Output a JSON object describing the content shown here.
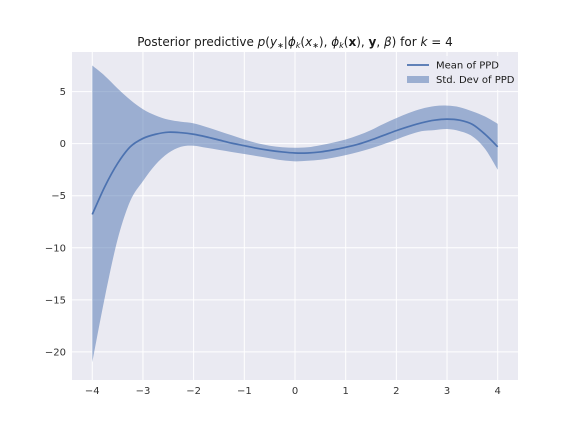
{
  "chart_data": {
    "type": "line",
    "title": "Posterior predictive p(y∗|ϕₖ(x∗), ϕₖ(x), y, β) for k = 4",
    "xlabel": "",
    "ylabel": "",
    "xlim": [
      -4.4,
      4.4
    ],
    "ylim": [
      -22.7,
      8.8
    ],
    "x_ticks": [
      -4,
      -3,
      -2,
      -1,
      0,
      1,
      2,
      3,
      4
    ],
    "x_tick_labels": [
      "−4",
      "−3",
      "−2",
      "−1",
      "0",
      "1",
      "2",
      "3",
      "4"
    ],
    "y_ticks": [
      5,
      0,
      -5,
      -10,
      -15,
      -20
    ],
    "y_tick_labels": [
      "5",
      "0",
      "−5",
      "−10",
      "−15",
      "−20"
    ],
    "grid": true,
    "legend_position": "upper-right",
    "colors": {
      "mean": "#4c72b0",
      "band": "#4c72b0",
      "background": "#eaeaf2",
      "grid": "#ffffff"
    },
    "legend": [
      {
        "label": "Mean of PPD",
        "kind": "line"
      },
      {
        "label": "Std. Dev of PPD",
        "kind": "band"
      }
    ],
    "series": [
      {
        "name": "Mean of PPD",
        "x": [
          -4,
          -3.75,
          -3.5,
          -3.25,
          -3,
          -2.75,
          -2.5,
          -2.25,
          -2,
          -1.75,
          -1.5,
          -1.25,
          -1,
          -0.75,
          -0.5,
          -0.25,
          0,
          0.25,
          0.5,
          0.75,
          1,
          1.25,
          1.5,
          1.75,
          2,
          2.25,
          2.5,
          2.75,
          3,
          3.25,
          3.5,
          3.75,
          4
        ],
        "y": [
          -6.8,
          -4.1,
          -1.9,
          -0.3,
          0.5,
          0.9,
          1.1,
          1.05,
          0.9,
          0.65,
          0.35,
          0.05,
          -0.2,
          -0.45,
          -0.65,
          -0.8,
          -0.9,
          -0.9,
          -0.8,
          -0.6,
          -0.35,
          -0.05,
          0.35,
          0.8,
          1.25,
          1.65,
          2.0,
          2.25,
          2.35,
          2.25,
          1.85,
          0.9,
          -0.3
        ]
      },
      {
        "name": "Std. Dev of PPD",
        "x": [
          -4,
          -3.75,
          -3.5,
          -3.25,
          -3,
          -2.75,
          -2.5,
          -2.25,
          -2,
          -1.75,
          -1.5,
          -1.25,
          -1,
          -0.75,
          -0.5,
          -0.25,
          0,
          0.25,
          0.5,
          0.75,
          1,
          1.25,
          1.5,
          1.75,
          2,
          2.25,
          2.5,
          2.75,
          3,
          3.25,
          3.5,
          3.75,
          4
        ],
        "upper": [
          7.5,
          6.5,
          5.3,
          4.2,
          3.3,
          2.7,
          2.3,
          2.1,
          1.95,
          1.6,
          1.2,
          0.8,
          0.4,
          0.05,
          -0.2,
          -0.35,
          -0.4,
          -0.35,
          -0.15,
          0.1,
          0.4,
          0.8,
          1.3,
          1.9,
          2.45,
          2.95,
          3.35,
          3.6,
          3.65,
          3.5,
          3.1,
          2.6,
          1.9
        ],
        "lower": [
          -21.0,
          -14.7,
          -9.2,
          -5.5,
          -3.6,
          -2.0,
          -0.9,
          -0.3,
          -0.2,
          -0.4,
          -0.6,
          -0.8,
          -1.0,
          -1.2,
          -1.4,
          -1.6,
          -1.7,
          -1.65,
          -1.55,
          -1.35,
          -1.1,
          -0.8,
          -0.45,
          -0.05,
          0.4,
          0.85,
          1.2,
          1.3,
          1.4,
          1.2,
          0.7,
          -0.5,
          -2.5
        ]
      }
    ]
  }
}
